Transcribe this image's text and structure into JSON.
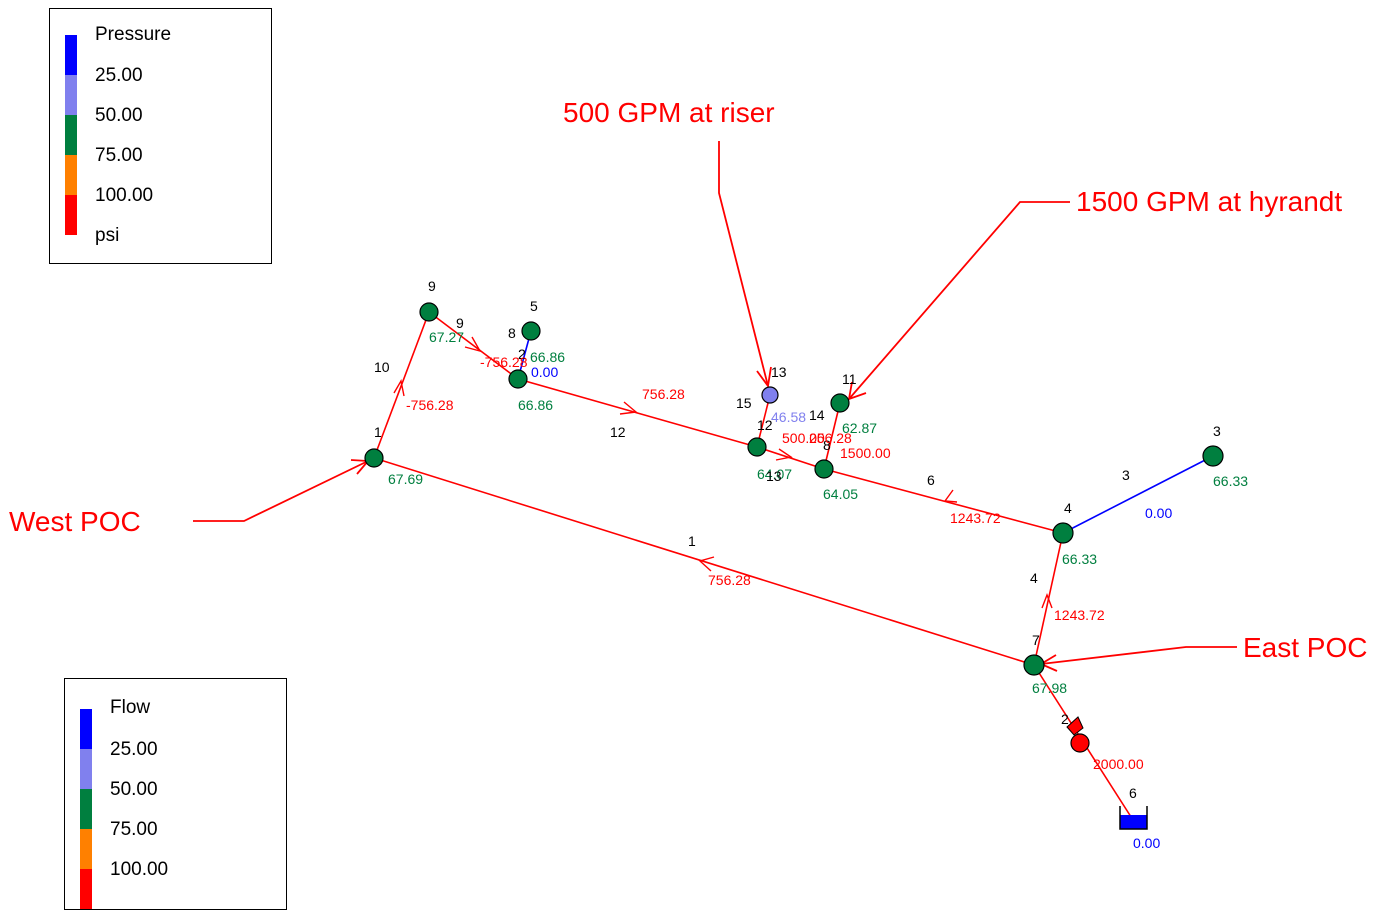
{
  "pressure_legend": {
    "title": "Pressure",
    "labels": [
      "25.00",
      "50.00",
      "75.00",
      "100.00"
    ],
    "unit": "psi",
    "colors": [
      "#0000ff",
      "#8080ee",
      "#007f3f",
      "#ff8000",
      "#ff0000"
    ]
  },
  "flow_legend": {
    "title": "Flow",
    "labels": [
      "25.00",
      "50.00",
      "75.00",
      "100.00"
    ],
    "colors": [
      "#0000ff",
      "#8080ee",
      "#007f3f",
      "#ff8000",
      "#ff0000"
    ]
  },
  "annotations": [
    "500 GPM at riser",
    "1500 GPM at hyrandt",
    "West POC",
    "East POC"
  ],
  "nodes": [
    {
      "id": "1",
      "value": "67.69"
    },
    {
      "id": "9",
      "value": "67.27"
    },
    {
      "id": "5",
      "value": "66.86"
    },
    {
      "id": "2",
      "value": "66.86"
    },
    {
      "id": "13",
      "value": "46.58"
    },
    {
      "id": "11",
      "value": "62.87"
    },
    {
      "id": "12",
      "value": "64.07"
    },
    {
      "id": "8",
      "value": "64.05"
    },
    {
      "id": "4",
      "value": "66.33"
    },
    {
      "id": "3",
      "value": "66.33"
    },
    {
      "id": "7",
      "value": "67.98"
    },
    {
      "id": "2",
      "value": ""
    },
    {
      "id": "6",
      "value": "0.00"
    }
  ],
  "links": [
    {
      "id": "1",
      "flow": "756.28"
    },
    {
      "id": "10",
      "flow": "-756.28"
    },
    {
      "id": "9",
      "flow": "-756.28"
    },
    {
      "id": "8",
      "flow": "0.00"
    },
    {
      "id": "12",
      "flow": "756.28"
    },
    {
      "id": "15",
      "flow": "500.00"
    },
    {
      "id": "13",
      "flow": "256.28"
    },
    {
      "id": "14",
      "flow": "1500.00"
    },
    {
      "id": "6",
      "flow": "1243.72"
    },
    {
      "id": "3",
      "flow": "0.00"
    },
    {
      "id": "4",
      "flow": "1243.72"
    },
    {
      "id": "2",
      "flow": "2000.00"
    }
  ]
}
